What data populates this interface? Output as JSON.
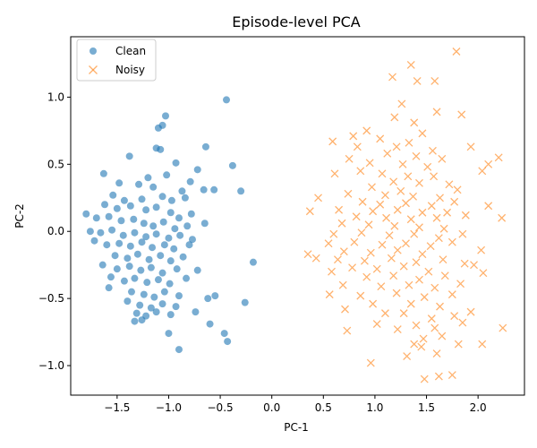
{
  "chart_data": {
    "type": "scatter",
    "title": "Episode-level PCA",
    "xlabel": "PC-1",
    "ylabel": "PC-2",
    "xlim": [
      -1.95,
      2.45
    ],
    "ylim": [
      -1.22,
      1.45
    ],
    "xticks": [
      -1.5,
      -1.0,
      -0.5,
      0.0,
      0.5,
      1.0,
      1.5,
      2.0
    ],
    "xtick_labels": [
      "−1.5",
      "−1.0",
      "−0.5",
      "0.0",
      "0.5",
      "1.0",
      "1.5",
      "2.0"
    ],
    "yticks": [
      -1.0,
      -0.5,
      0.0,
      0.5,
      1.0
    ],
    "ytick_labels": [
      "−1.0",
      "−0.5",
      "0.0",
      "0.5",
      "1.0"
    ],
    "grid": false,
    "legend": "top-left",
    "series": [
      {
        "name": "Clean",
        "marker": "circle",
        "color": "#1f77b4",
        "points": [
          [
            -0.44,
            0.98
          ],
          [
            -1.03,
            0.86
          ],
          [
            -1.06,
            0.79
          ],
          [
            -1.1,
            0.77
          ],
          [
            -0.64,
            0.63
          ],
          [
            -1.38,
            0.56
          ],
          [
            -1.12,
            0.62
          ],
          [
            -1.08,
            0.61
          ],
          [
            -0.93,
            0.51
          ],
          [
            -0.38,
            0.49
          ],
          [
            -1.63,
            0.43
          ],
          [
            -1.2,
            0.4
          ],
          [
            -1.02,
            0.42
          ],
          [
            -0.72,
            0.46
          ],
          [
            -0.79,
            0.37
          ],
          [
            -0.56,
            0.31
          ],
          [
            -0.3,
            0.3
          ],
          [
            -1.48,
            0.36
          ],
          [
            -1.29,
            0.35
          ],
          [
            -1.15,
            0.33
          ],
          [
            -0.87,
            0.3
          ],
          [
            -0.66,
            0.31
          ],
          [
            -1.54,
            0.27
          ],
          [
            -1.43,
            0.23
          ],
          [
            -1.26,
            0.24
          ],
          [
            -1.06,
            0.26
          ],
          [
            -0.97,
            0.23
          ],
          [
            -0.84,
            0.25
          ],
          [
            -1.62,
            0.2
          ],
          [
            -1.5,
            0.17
          ],
          [
            -1.37,
            0.19
          ],
          [
            -1.22,
            0.16
          ],
          [
            -1.12,
            0.18
          ],
          [
            -0.98,
            0.14
          ],
          [
            -0.9,
            0.1
          ],
          [
            -0.78,
            0.13
          ],
          [
            -1.8,
            0.13
          ],
          [
            -1.7,
            0.1
          ],
          [
            -1.58,
            0.11
          ],
          [
            -1.46,
            0.08
          ],
          [
            -1.34,
            0.09
          ],
          [
            -1.24,
            0.06
          ],
          [
            -1.15,
            0.04
          ],
          [
            -1.05,
            0.07
          ],
          [
            -0.94,
            0.02
          ],
          [
            -0.82,
            0.04
          ],
          [
            -0.65,
            0.06
          ],
          [
            -1.76,
            0.0
          ],
          [
            -1.66,
            -0.01
          ],
          [
            -1.55,
            0.01
          ],
          [
            -1.44,
            -0.03
          ],
          [
            -1.33,
            -0.01
          ],
          [
            -1.22,
            -0.04
          ],
          [
            -1.12,
            -0.02
          ],
          [
            -1.0,
            -0.05
          ],
          [
            -0.89,
            -0.03
          ],
          [
            -0.77,
            -0.06
          ],
          [
            -1.72,
            -0.07
          ],
          [
            -1.6,
            -0.1
          ],
          [
            -1.48,
            -0.09
          ],
          [
            -1.37,
            -0.11
          ],
          [
            -1.26,
            -0.08
          ],
          [
            -1.16,
            -0.12
          ],
          [
            -1.04,
            -0.1
          ],
          [
            -0.95,
            -0.13
          ],
          [
            -0.8,
            -0.1
          ],
          [
            -1.52,
            -0.18
          ],
          [
            -1.4,
            -0.2
          ],
          [
            -1.3,
            -0.17
          ],
          [
            -1.19,
            -0.21
          ],
          [
            -1.08,
            -0.18
          ],
          [
            -0.98,
            -0.22
          ],
          [
            -0.86,
            -0.19
          ],
          [
            -0.18,
            -0.23
          ],
          [
            -1.64,
            -0.25
          ],
          [
            -1.5,
            -0.28
          ],
          [
            -1.38,
            -0.26
          ],
          [
            -1.27,
            -0.29
          ],
          [
            -1.17,
            -0.27
          ],
          [
            -1.06,
            -0.31
          ],
          [
            -0.92,
            -0.28
          ],
          [
            -0.72,
            -0.29
          ],
          [
            -1.56,
            -0.34
          ],
          [
            -1.43,
            -0.37
          ],
          [
            -1.33,
            -0.35
          ],
          [
            -1.21,
            -0.38
          ],
          [
            -1.1,
            -0.36
          ],
          [
            -0.99,
            -0.39
          ],
          [
            -0.83,
            -0.35
          ],
          [
            -1.58,
            -0.42
          ],
          [
            -1.36,
            -0.45
          ],
          [
            -1.24,
            -0.47
          ],
          [
            -1.14,
            -0.49
          ],
          [
            -1.04,
            -0.45
          ],
          [
            -0.9,
            -0.48
          ],
          [
            -0.62,
            -0.5
          ],
          [
            -0.55,
            -0.48
          ],
          [
            -0.26,
            -0.53
          ],
          [
            -1.4,
            -0.52
          ],
          [
            -1.28,
            -0.55
          ],
          [
            -1.17,
            -0.57
          ],
          [
            -1.06,
            -0.54
          ],
          [
            -0.93,
            -0.56
          ],
          [
            -1.31,
            -0.61
          ],
          [
            -1.22,
            -0.63
          ],
          [
            -1.12,
            -0.6
          ],
          [
            -0.98,
            -0.62
          ],
          [
            -0.74,
            -0.6
          ],
          [
            -1.33,
            -0.67
          ],
          [
            -1.26,
            -0.66
          ],
          [
            -0.6,
            -0.69
          ],
          [
            -1.0,
            -0.76
          ],
          [
            -0.46,
            -0.76
          ],
          [
            -0.43,
            -0.82
          ],
          [
            -0.9,
            -0.88
          ]
        ]
      },
      {
        "name": "Noisy",
        "marker": "x",
        "color": "#ff7f0e",
        "points": [
          [
            1.79,
            1.34
          ],
          [
            1.35,
            1.24
          ],
          [
            1.17,
            1.15
          ],
          [
            1.58,
            1.12
          ],
          [
            1.41,
            1.12
          ],
          [
            1.26,
            0.95
          ],
          [
            1.6,
            0.89
          ],
          [
            1.84,
            0.87
          ],
          [
            1.19,
            0.85
          ],
          [
            1.38,
            0.81
          ],
          [
            0.92,
            0.75
          ],
          [
            1.46,
            0.73
          ],
          [
            0.79,
            0.71
          ],
          [
            1.05,
            0.69
          ],
          [
            1.33,
            0.66
          ],
          [
            0.59,
            0.67
          ],
          [
            0.83,
            0.63
          ],
          [
            1.21,
            0.63
          ],
          [
            1.56,
            0.6
          ],
          [
            1.93,
            0.63
          ],
          [
            1.12,
            0.58
          ],
          [
            1.4,
            0.56
          ],
          [
            0.75,
            0.54
          ],
          [
            1.65,
            0.54
          ],
          [
            2.2,
            0.55
          ],
          [
            0.95,
            0.51
          ],
          [
            1.27,
            0.5
          ],
          [
            1.51,
            0.48
          ],
          [
            2.1,
            0.5
          ],
          [
            0.61,
            0.43
          ],
          [
            0.86,
            0.45
          ],
          [
            1.07,
            0.43
          ],
          [
            1.32,
            0.41
          ],
          [
            1.57,
            0.41
          ],
          [
            2.04,
            0.45
          ],
          [
            1.18,
            0.37
          ],
          [
            1.43,
            0.36
          ],
          [
            1.72,
            0.35
          ],
          [
            0.97,
            0.33
          ],
          [
            1.25,
            0.3
          ],
          [
            1.8,
            0.31
          ],
          [
            0.74,
            0.28
          ],
          [
            1.1,
            0.27
          ],
          [
            1.37,
            0.26
          ],
          [
            1.63,
            0.25
          ],
          [
            0.45,
            0.25
          ],
          [
            0.88,
            0.22
          ],
          [
            1.05,
            0.2
          ],
          [
            1.3,
            0.21
          ],
          [
            1.55,
            0.19
          ],
          [
            1.77,
            0.22
          ],
          [
            2.1,
            0.19
          ],
          [
            0.65,
            0.16
          ],
          [
            0.98,
            0.15
          ],
          [
            1.22,
            0.16
          ],
          [
            1.46,
            0.14
          ],
          [
            1.7,
            0.14
          ],
          [
            0.37,
            0.15
          ],
          [
            0.82,
            0.11
          ],
          [
            1.11,
            0.1
          ],
          [
            1.35,
            0.09
          ],
          [
            1.6,
            0.1
          ],
          [
            1.88,
            0.12
          ],
          [
            0.68,
            0.06
          ],
          [
            0.94,
            0.05
          ],
          [
            1.19,
            0.04
          ],
          [
            1.43,
            0.03
          ],
          [
            1.67,
            0.02
          ],
          [
            2.23,
            0.1
          ],
          [
            0.6,
            -0.02
          ],
          [
            0.87,
            -0.01
          ],
          [
            1.14,
            -0.03
          ],
          [
            1.38,
            -0.02
          ],
          [
            1.62,
            -0.05
          ],
          [
            1.85,
            -0.02
          ],
          [
            0.55,
            -0.09
          ],
          [
            0.8,
            -0.08
          ],
          [
            1.07,
            -0.1
          ],
          [
            1.3,
            -0.09
          ],
          [
            1.54,
            -0.11
          ],
          [
            1.75,
            -0.08
          ],
          [
            0.7,
            -0.15
          ],
          [
            0.96,
            -0.16
          ],
          [
            1.22,
            -0.14
          ],
          [
            1.46,
            -0.17
          ],
          [
            2.03,
            -0.14
          ],
          [
            0.35,
            -0.17
          ],
          [
            0.64,
            -0.21
          ],
          [
            0.9,
            -0.22
          ],
          [
            1.16,
            -0.2
          ],
          [
            1.4,
            -0.23
          ],
          [
            1.66,
            -0.21
          ],
          [
            0.43,
            -0.2
          ],
          [
            0.78,
            -0.27
          ],
          [
            1.02,
            -0.28
          ],
          [
            1.28,
            -0.26
          ],
          [
            1.52,
            -0.3
          ],
          [
            1.87,
            -0.24
          ],
          [
            1.96,
            -0.25
          ],
          [
            0.58,
            -0.3
          ],
          [
            0.92,
            -0.34
          ],
          [
            1.18,
            -0.33
          ],
          [
            1.43,
            -0.36
          ],
          [
            1.68,
            -0.33
          ],
          [
            2.05,
            -0.31
          ],
          [
            0.69,
            -0.4
          ],
          [
            1.06,
            -0.41
          ],
          [
            1.33,
            -0.4
          ],
          [
            1.58,
            -0.42
          ],
          [
            1.83,
            -0.39
          ],
          [
            0.56,
            -0.47
          ],
          [
            0.86,
            -0.48
          ],
          [
            1.21,
            -0.46
          ],
          [
            1.48,
            -0.49
          ],
          [
            1.75,
            -0.47
          ],
          [
            0.98,
            -0.54
          ],
          [
            1.35,
            -0.54
          ],
          [
            1.63,
            -0.56
          ],
          [
            0.71,
            -0.58
          ],
          [
            1.1,
            -0.61
          ],
          [
            1.28,
            -0.61
          ],
          [
            1.93,
            -0.6
          ],
          [
            1.55,
            -0.65
          ],
          [
            1.77,
            -0.63
          ],
          [
            1.02,
            -0.69
          ],
          [
            1.4,
            -0.7
          ],
          [
            1.85,
            -0.68
          ],
          [
            1.22,
            -0.73
          ],
          [
            1.58,
            -0.72
          ],
          [
            2.24,
            -0.72
          ],
          [
            0.73,
            -0.74
          ],
          [
            1.47,
            -0.8
          ],
          [
            1.65,
            -0.78
          ],
          [
            1.38,
            -0.84
          ],
          [
            1.81,
            -0.84
          ],
          [
            2.04,
            -0.84
          ],
          [
            1.45,
            -0.86
          ],
          [
            1.31,
            -0.93
          ],
          [
            1.6,
            -0.91
          ],
          [
            0.96,
            -0.98
          ],
          [
            1.62,
            -1.08
          ],
          [
            1.75,
            -1.07
          ],
          [
            1.48,
            -1.1
          ]
        ]
      }
    ]
  }
}
